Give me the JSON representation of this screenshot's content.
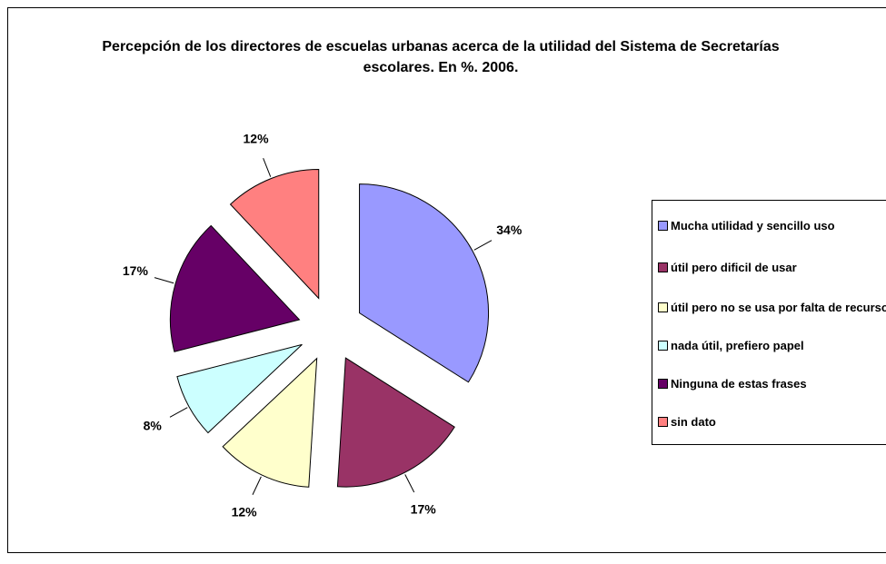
{
  "chart_data": {
    "type": "pie",
    "title": "Percepción de los directores de escuelas urbanas acerca de la utilidad del Sistema de Secretarías escolares. En %. 2006.",
    "categories": [
      "Mucha utilidad y sencillo uso",
      "útil pero dificil de usar",
      "útil pero no se usa por falta de recursos",
      "nada útil, prefiero papel",
      "Ninguna de estas frases",
      "sin dato"
    ],
    "values": [
      34,
      17,
      12,
      8,
      17,
      12
    ],
    "value_labels": [
      "34%",
      "17%",
      "12%",
      "8%",
      "17%",
      "12%"
    ],
    "colors": [
      "#9999ff",
      "#993366",
      "#ffffcc",
      "#ccffff",
      "#660066",
      "#ff8080"
    ],
    "legend": "right"
  }
}
